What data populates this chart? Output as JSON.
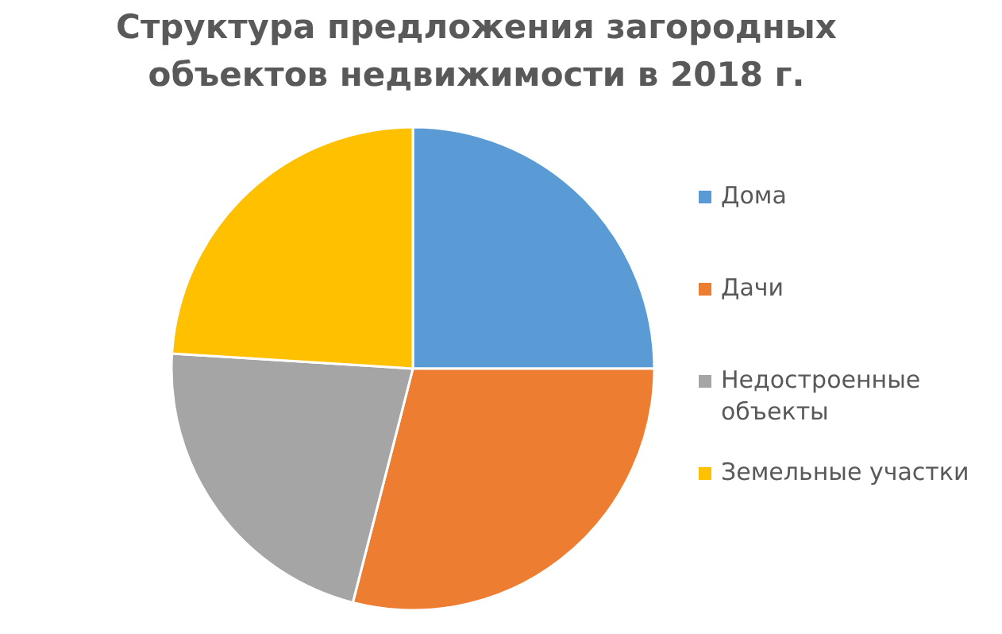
{
  "chart_data": {
    "type": "pie",
    "title": "Структура предложения загородных объектов недвижимости в 2018 г.",
    "categories": [
      "Дома",
      "Дачи",
      "Недостроенные объекты",
      "Земельные участки"
    ],
    "values": [
      25,
      29,
      22,
      24
    ],
    "colors": [
      "#5b9bd5",
      "#ed7d31",
      "#a5a5a5",
      "#ffc000"
    ],
    "legend": "right"
  }
}
